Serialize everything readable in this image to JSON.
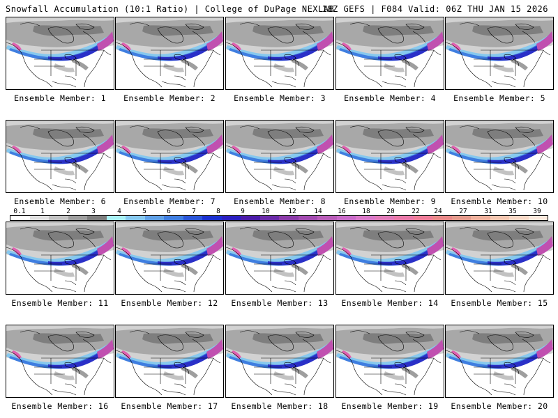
{
  "header": {
    "title": "Snowfall Accumulation (10:1 Ratio) | College of DuPage NEXLAB",
    "run_info": "18Z GEFS | F084 Valid: 06Z THU JAN 15 2026"
  },
  "members": [
    {
      "label": "Ensemble Member: 1"
    },
    {
      "label": "Ensemble Member: 2"
    },
    {
      "label": "Ensemble Member: 3"
    },
    {
      "label": "Ensemble Member: 4"
    },
    {
      "label": "Ensemble Member: 5"
    },
    {
      "label": "Ensemble Member: 6"
    },
    {
      "label": "Ensemble Member: 7"
    },
    {
      "label": "Ensemble Member: 8"
    },
    {
      "label": "Ensemble Member: 9"
    },
    {
      "label": "Ensemble Member: 10"
    },
    {
      "label": "Ensemble Member: 11"
    },
    {
      "label": "Ensemble Member: 12"
    },
    {
      "label": "Ensemble Member: 13"
    },
    {
      "label": "Ensemble Member: 14"
    },
    {
      "label": "Ensemble Member: 15"
    },
    {
      "label": "Ensemble Member: 16"
    },
    {
      "label": "Ensemble Member: 17"
    },
    {
      "label": "Ensemble Member: 18"
    },
    {
      "label": "Ensemble Member: 19"
    },
    {
      "label": "Ensemble Member: 20"
    }
  ],
  "colorbar": {
    "labels": [
      "0.1",
      "1",
      "2",
      "3",
      "4",
      "5",
      "6",
      "7",
      "8",
      "9",
      "10",
      "12",
      "14",
      "16",
      "18",
      "20",
      "22",
      "24",
      "27",
      "31",
      "35",
      "39"
    ],
    "colors": [
      "#ffffff",
      "#e0e0e0",
      "#c2c2c2",
      "#9e9e9e",
      "#7d7d7d",
      "#a8f0f5",
      "#86c8ee",
      "#5fa0e6",
      "#3f7ee0",
      "#2a55d8",
      "#1a30d0",
      "#2a1ec0",
      "#4a1aa8",
      "#6a2aa8",
      "#8a3aa8",
      "#a24ab0",
      "#b85cb8",
      "#c86ac8",
      "#d878c8",
      "#e07ab8",
      "#e878a8",
      "#ee7c98",
      "#e88888",
      "#e49a8c",
      "#eeb09c",
      "#f4c6b0",
      "#f8d8c6",
      "#fbe8dc"
    ]
  }
}
